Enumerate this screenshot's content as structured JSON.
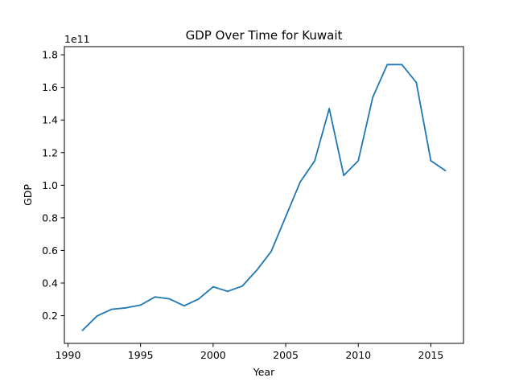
{
  "chart_data": {
    "type": "line",
    "title": "GDP Over Time for Kuwait",
    "xlabel": "Year",
    "ylabel": "GDP",
    "y_offset_label": "1e11",
    "xlim": [
      1989.75,
      2017.25
    ],
    "ylim": [
      3000000000.0,
      185000000000.0
    ],
    "x_ticks": [
      1990,
      1995,
      2000,
      2005,
      2010,
      2015
    ],
    "x_tick_labels": [
      "1990",
      "1995",
      "2000",
      "2005",
      "2010",
      "2015"
    ],
    "y_ticks": [
      20000000000.0,
      40000000000.0,
      60000000000.0,
      80000000000.0,
      100000000000.0,
      120000000000.0,
      140000000000.0,
      160000000000.0,
      180000000000.0
    ],
    "y_tick_labels": [
      "0.2",
      "0.4",
      "0.6",
      "0.8",
      "1.0",
      "1.2",
      "1.4",
      "1.6",
      "1.8"
    ],
    "grid": false,
    "line_color": "#1f77b4",
    "x": [
      1991,
      1992,
      1993,
      1994,
      1995,
      1996,
      1997,
      1998,
      1999,
      2000,
      2001,
      2002,
      2003,
      2004,
      2005,
      2006,
      2007,
      2008,
      2009,
      2010,
      2011,
      2012,
      2013,
      2014,
      2015,
      2016
    ],
    "series": [
      {
        "values": [
          11000000000.0,
          19800000000.0,
          23900000000.0,
          24800000000.0,
          26500000000.0,
          31500000000.0,
          30300000000.0,
          26000000000.0,
          30200000000.0,
          37700000000.0,
          34900000000.0,
          38100000000.0,
          47800000000.0,
          59400000000.0,
          80700000000.0,
          102000000000.0,
          115000000000.0,
          147000000000.0,
          106000000000.0,
          115000000000.0,
          154000000000.0,
          174000000000.0,
          174000000000.0,
          163000000000.0,
          115000000000.0,
          109000000000.0
        ]
      }
    ]
  }
}
